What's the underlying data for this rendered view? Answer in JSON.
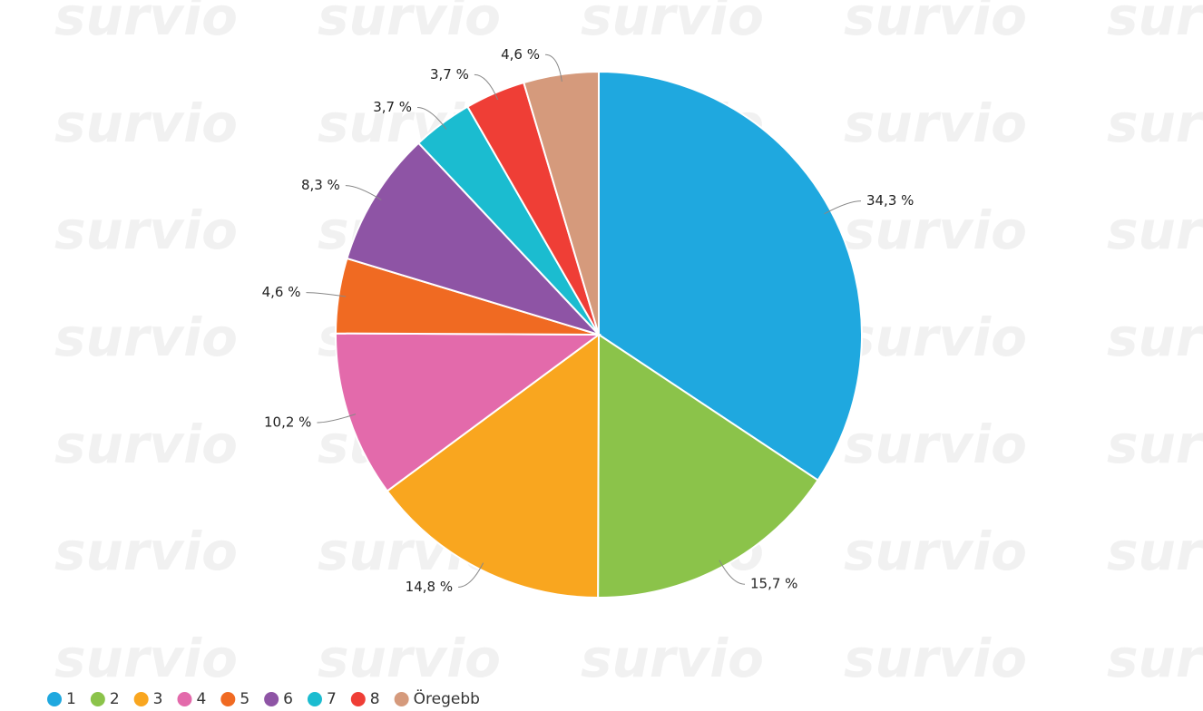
{
  "watermark": "survio",
  "chart_data": {
    "type": "pie",
    "categories": [
      "1",
      "2",
      "3",
      "4",
      "5",
      "6",
      "7",
      "8",
      "Öregebb"
    ],
    "values": [
      34.3,
      15.7,
      14.8,
      10.2,
      4.6,
      8.3,
      3.7,
      3.7,
      4.6
    ],
    "value_labels": [
      "34,3 %",
      "15,7 %",
      "14,8 %",
      "10,2 %",
      "4,6 %",
      "8,3 %",
      "3,7 %",
      "3,7 %",
      "4,6 %"
    ],
    "colors": [
      "#1fa8df",
      "#8bc34a",
      "#f9a61f",
      "#e36aab",
      "#f06a22",
      "#8e54a5",
      "#1bbcd0",
      "#ef3e36",
      "#d59a7c"
    ],
    "legend": "bottom-left"
  }
}
